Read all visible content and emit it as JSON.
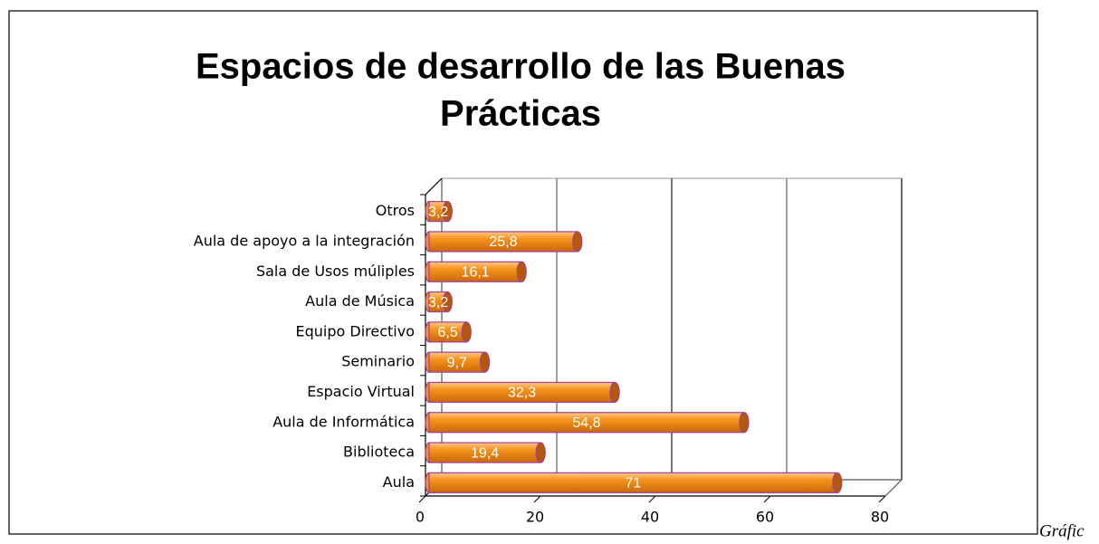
{
  "chart_data": {
    "type": "bar",
    "orientation": "horizontal",
    "title": "Espacios de desarrollo  de las Buenas Prácticas",
    "categories": [
      "Aula",
      "Biblioteca",
      "Aula de Informática",
      "Espacio Virtual",
      "Seminario",
      "Equipo Directivo",
      "Aula de Música",
      "Sala de Usos múliples",
      "Aula de apoyo a la integración",
      "Otros"
    ],
    "values": [
      71,
      19.4,
      54.8,
      32.3,
      9.7,
      6.5,
      3.2,
      16.1,
      25.8,
      3.2
    ],
    "value_labels": [
      "71",
      "19,4",
      "54,8",
      "32,3",
      "9,7",
      "6,5",
      "3,2",
      "16,1",
      "25,8",
      "3,2"
    ],
    "color": "#f7941d",
    "xlim": [
      0,
      80
    ],
    "xticks": [
      0,
      20,
      40,
      60,
      80
    ],
    "grid": true,
    "caption": "Gráfic"
  }
}
